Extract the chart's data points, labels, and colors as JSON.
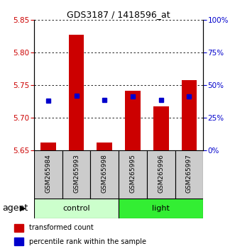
{
  "title": "GDS3187 / 1418596_at",
  "samples": [
    "GSM265984",
    "GSM265993",
    "GSM265998",
    "GSM265995",
    "GSM265996",
    "GSM265997"
  ],
  "red_values": [
    5.662,
    5.828,
    5.662,
    5.742,
    5.718,
    5.758
  ],
  "blue_values": [
    5.726,
    5.734,
    5.728,
    5.733,
    5.728,
    5.733
  ],
  "ymin": 5.65,
  "ymax": 5.85,
  "yticks_left": [
    5.65,
    5.7,
    5.75,
    5.8,
    5.85
  ],
  "yticks_right_pct": [
    0,
    25,
    50,
    75,
    100
  ],
  "groups": [
    {
      "label": "control",
      "indices": [
        0,
        1,
        2
      ],
      "color": "#ccffcc"
    },
    {
      "label": "light",
      "indices": [
        3,
        4,
        5
      ],
      "color": "#33ee33"
    }
  ],
  "bar_color": "#cc0000",
  "blue_color": "#0000cc",
  "bar_bottom": 5.65,
  "bar_width": 0.55,
  "blue_marker_size": 5,
  "tick_label_color_left": "#cc0000",
  "tick_label_color_right": "#0000cc",
  "legend_items": [
    "transformed count",
    "percentile rank within the sample"
  ],
  "legend_colors": [
    "#cc0000",
    "#0000cc"
  ],
  "agent_label": "agent",
  "sample_box_color": "#cccccc",
  "title_fontsize": 9,
  "tick_fontsize": 7.5,
  "sample_fontsize": 6.5,
  "group_fontsize": 8,
  "legend_fontsize": 7,
  "agent_fontsize": 9
}
